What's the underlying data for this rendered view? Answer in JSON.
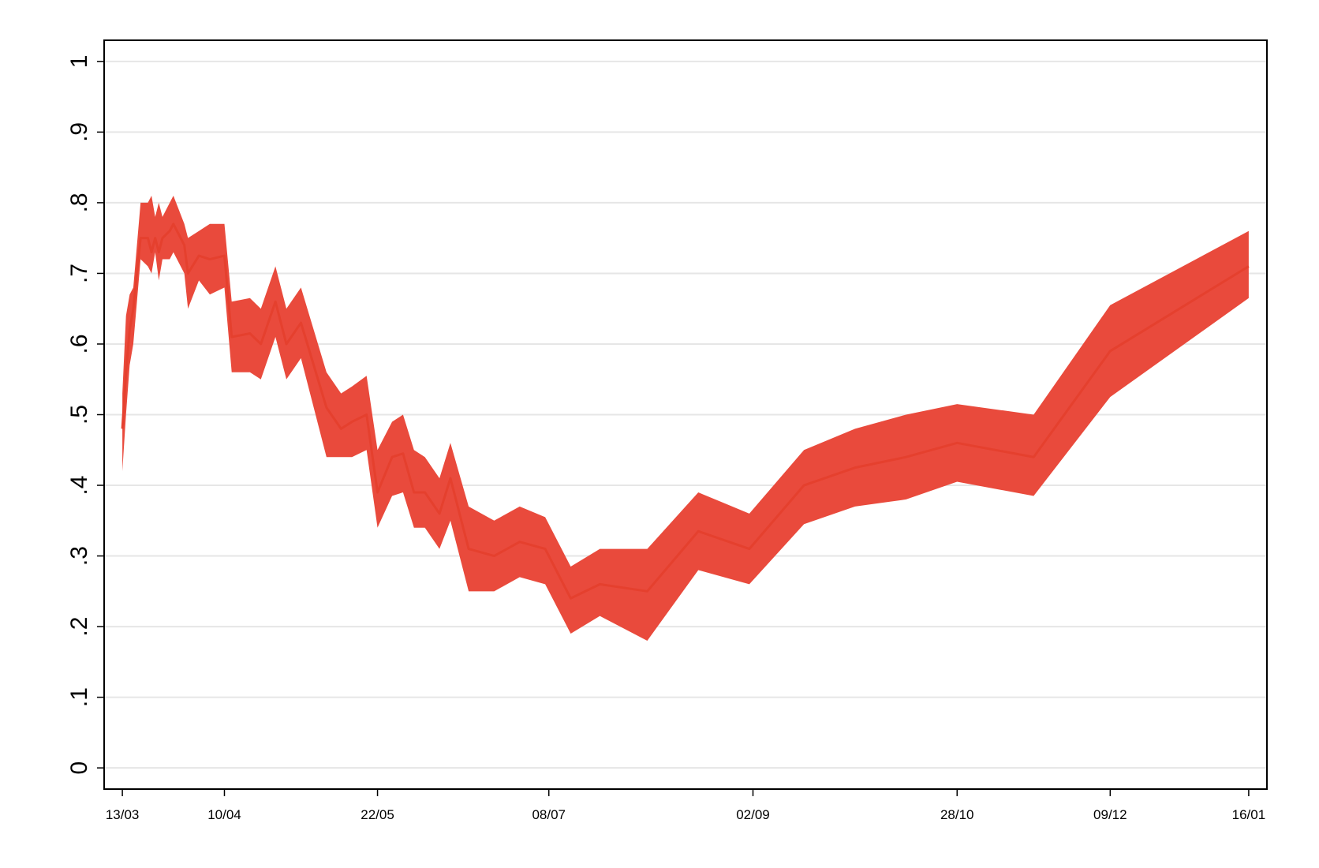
{
  "chart_data": {
    "type": "line",
    "x": [
      0,
      1,
      2,
      3,
      5,
      7,
      8,
      9,
      10,
      11,
      13,
      14,
      17,
      18,
      21,
      24,
      28,
      30,
      35,
      38,
      42,
      45,
      49,
      56,
      60,
      63,
      67,
      70,
      74,
      77,
      80,
      83,
      87,
      90,
      95,
      102,
      109,
      116,
      123,
      131,
      144,
      158,
      172,
      187,
      201,
      215,
      229,
      250,
      271,
      309
    ],
    "values": [
      0.48,
      0.56,
      0.62,
      0.65,
      0.75,
      0.75,
      0.73,
      0.75,
      0.73,
      0.75,
      0.76,
      0.77,
      0.74,
      0.7,
      0.725,
      0.72,
      0.725,
      0.61,
      0.615,
      0.6,
      0.66,
      0.6,
      0.63,
      0.51,
      0.48,
      0.49,
      0.5,
      0.39,
      0.44,
      0.445,
      0.39,
      0.39,
      0.36,
      0.41,
      0.31,
      0.3,
      0.32,
      0.31,
      0.24,
      0.26,
      0.25,
      0.335,
      0.31,
      0.4,
      0.425,
      0.44,
      0.46,
      0.44,
      0.59,
      0.71
    ],
    "lower": [
      0.42,
      0.5,
      0.57,
      0.6,
      0.72,
      0.71,
      0.7,
      0.73,
      0.69,
      0.72,
      0.72,
      0.73,
      0.7,
      0.65,
      0.69,
      0.67,
      0.68,
      0.56,
      0.56,
      0.55,
      0.61,
      0.55,
      0.58,
      0.44,
      0.44,
      0.44,
      0.45,
      0.34,
      0.385,
      0.39,
      0.34,
      0.34,
      0.31,
      0.35,
      0.25,
      0.25,
      0.27,
      0.26,
      0.19,
      0.215,
      0.18,
      0.28,
      0.26,
      0.345,
      0.37,
      0.38,
      0.405,
      0.385,
      0.525,
      0.665
    ],
    "upper": [
      0.53,
      0.64,
      0.67,
      0.68,
      0.8,
      0.8,
      0.81,
      0.78,
      0.8,
      0.78,
      0.8,
      0.81,
      0.77,
      0.75,
      0.76,
      0.77,
      0.77,
      0.66,
      0.665,
      0.65,
      0.71,
      0.65,
      0.68,
      0.56,
      0.53,
      0.54,
      0.555,
      0.45,
      0.49,
      0.5,
      0.45,
      0.44,
      0.41,
      0.46,
      0.37,
      0.35,
      0.37,
      0.355,
      0.285,
      0.31,
      0.31,
      0.39,
      0.36,
      0.45,
      0.48,
      0.5,
      0.515,
      0.5,
      0.655,
      0.76
    ],
    "color": "#e5402e",
    "band_color": "#e94a3c",
    "xlim": [
      -5,
      314
    ],
    "xticks": [
      {
        "value": 0,
        "label": "13/03"
      },
      {
        "value": 28,
        "label": "10/04"
      },
      {
        "value": 70,
        "label": "22/05"
      },
      {
        "value": 117,
        "label": "08/07"
      },
      {
        "value": 173,
        "label": "02/09"
      },
      {
        "value": 229,
        "label": "28/10"
      },
      {
        "value": 271,
        "label": "09/12"
      },
      {
        "value": 309,
        "label": "16/01"
      }
    ],
    "ylim": [
      -0.03,
      1.03
    ],
    "yticks": [
      0,
      {
        "value": 0.1,
        "label": ".1"
      },
      {
        "value": 0.2,
        "label": ".2"
      },
      {
        "value": 0.3,
        "label": ".3"
      },
      {
        "value": 0.4,
        "label": ".4"
      },
      {
        "value": 0.5,
        "label": ".5"
      },
      {
        "value": 0.6,
        "label": ".6"
      },
      {
        "value": 0.7,
        "label": ".7"
      },
      {
        "value": 0.8,
        "label": ".8"
      },
      {
        "value": 0.9,
        "label": ".9"
      },
      1
    ],
    "grid": true
  }
}
